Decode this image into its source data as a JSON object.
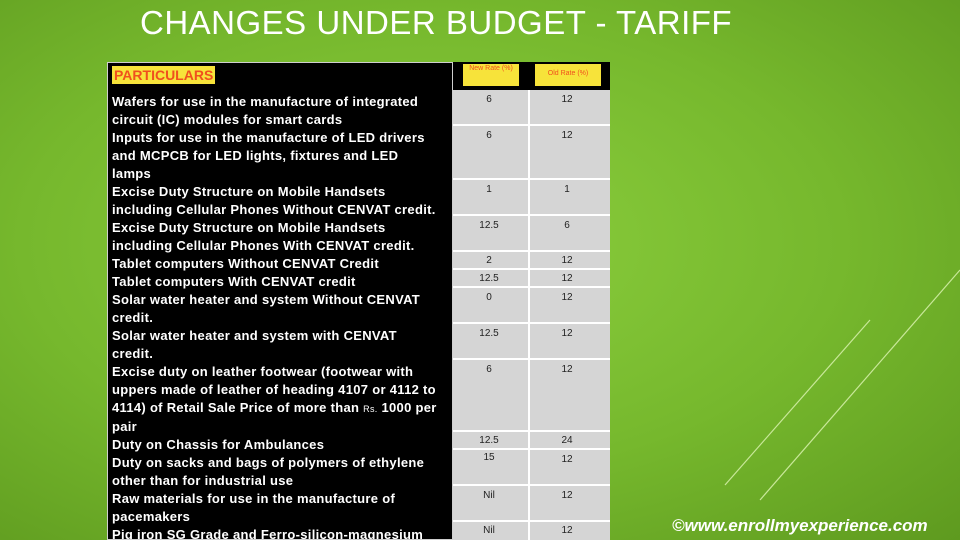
{
  "slide": {
    "title": "CHANGES UNDER BUDGET - TARIFF",
    "watermark": "©www.enrollmyexperience.com"
  },
  "table": {
    "header": {
      "particulars": "PARTICULARS",
      "new_rate": "New Rate (%)",
      "old_rate": "Old Rate (%)"
    },
    "rows": [
      {
        "lines": [
          "Wafers for use in the manufacture of integrated",
          "circuit (IC) modules for smart cards"
        ],
        "new": "6",
        "old": "12"
      },
      {
        "lines": [
          "Inputs for use in the manufacture of LED drivers",
          "and MCPCB for LED lights, fixtures and LED",
          "lamps"
        ],
        "new": "6",
        "old": "12"
      },
      {
        "lines": [
          "Excise Duty Structure on Mobile Handsets",
          "including Cellular Phones Without CENVAT credit."
        ],
        "new": "1",
        "old": "1"
      },
      {
        "lines": [
          "Excise Duty Structure on Mobile Handsets",
          "including Cellular Phones With CENVAT credit."
        ],
        "new": "12.5",
        "old": "6"
      },
      {
        "lines": [
          "Tablet computers Without CENVAT Credit"
        ],
        "new": "2",
        "old": "12"
      },
      {
        "lines": [
          "Tablet computers With CENVAT credit"
        ],
        "new": "12.5",
        "old": "12"
      },
      {
        "lines": [
          "Solar water heater and system Without CENVAT",
          "credit."
        ],
        "new": "0",
        "old": "12"
      },
      {
        "lines": [
          "Solar water heater and system with CENVAT",
          "credit."
        ],
        "new": "12.5",
        "old": "12"
      },
      {
        "lines": [
          "Excise duty on leather footwear (footwear with",
          "uppers made of leather of heading 4107 or 4112 to",
          "4114) of Retail Sale Price of more than ",
          "pair"
        ],
        "rs": "Rs.",
        "amount": " 1000 per",
        "new": "6",
        "old": "12"
      },
      {
        "lines": [
          "Duty on Chassis for Ambulances"
        ],
        "new": "12.5",
        "old": "24"
      },
      {
        "lines": [
          "Duty on sacks and bags of polymers of ethylene",
          "other than for industrial use"
        ],
        "new": "15",
        "old": "12"
      },
      {
        "lines": [
          "Raw materials for use in the manufacture of",
          "pacemakers"
        ],
        "new": "Nil",
        "old": "12"
      },
      {
        "lines": [
          "Pig iron SG Grade and Ferro-silicon-magnesium"
        ],
        "new": "Nil",
        "old": "12"
      }
    ]
  },
  "colors": {
    "background": "#7fc236",
    "header_fill": "#f7e33a",
    "header_text": "#f0501e",
    "cell_fill": "#d5d5d5"
  }
}
